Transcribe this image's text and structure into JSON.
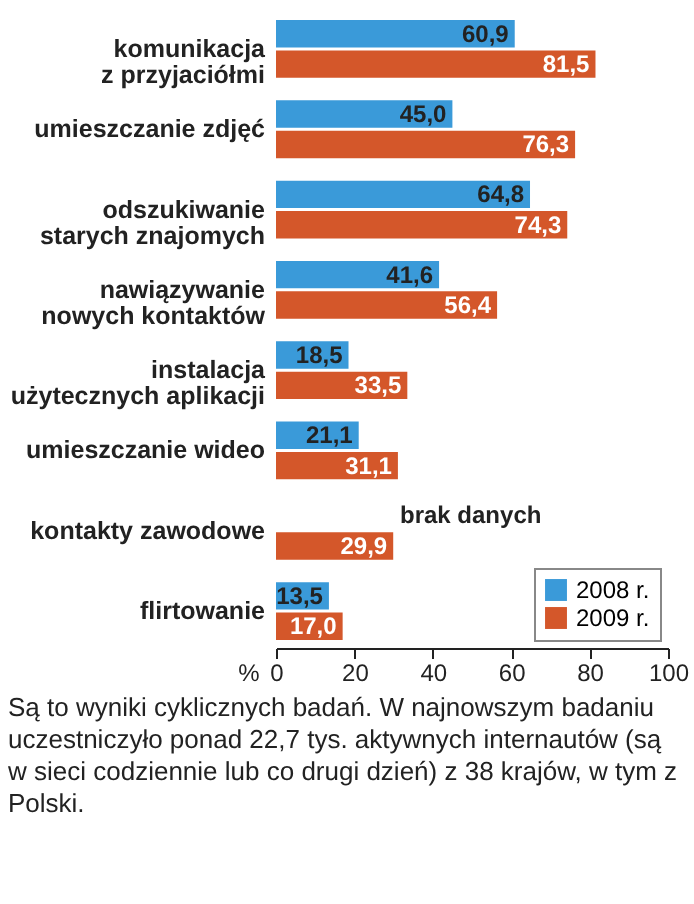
{
  "chart_data": {
    "type": "bar",
    "orientation": "horizontal",
    "xlabel": "%",
    "categories": [
      "komunikacja\nz przyjaciółmi",
      "umieszczanie zdjęć",
      "odszukiwanie\nstarych znajomych",
      "nawiązywanie\nnowych kontaktów",
      "instalacja\nużytecznych aplikacji",
      "umieszczanie wideo",
      "kontakty zawodowe",
      "flirtowanie"
    ],
    "series": [
      {
        "name": "2008 r.",
        "color": "#3a9ad9",
        "values": [
          60.9,
          45.0,
          64.8,
          41.6,
          18.5,
          21.1,
          null,
          13.5
        ],
        "value_labels": [
          "60,9",
          "45,0",
          "64,8",
          "41,6",
          "18,5",
          "21,1",
          null,
          "13,5"
        ]
      },
      {
        "name": "2009 r.",
        "color": "#d4572a",
        "values": [
          81.5,
          76.3,
          74.3,
          56.4,
          33.5,
          31.1,
          29.9,
          17.0
        ],
        "value_labels": [
          "81,5",
          "76,3",
          "74,3",
          "56,4",
          "33,5",
          "31,1",
          "29,9",
          "17,0"
        ]
      }
    ],
    "xlim": [
      0,
      100
    ],
    "xticks": [
      0,
      20,
      40,
      60,
      80,
      100
    ],
    "legend": "bottom right",
    "grid": false,
    "annotations": [
      "brak danych",
      "Są to wyniki cyklicznych badań. W najnowszym badaniu uczestniczyło ponad 22,7 tys. aktywnych internautów (są w sieci codziennie lub co drugi dzień) z 38 krajów, w tym z Polski."
    ]
  }
}
